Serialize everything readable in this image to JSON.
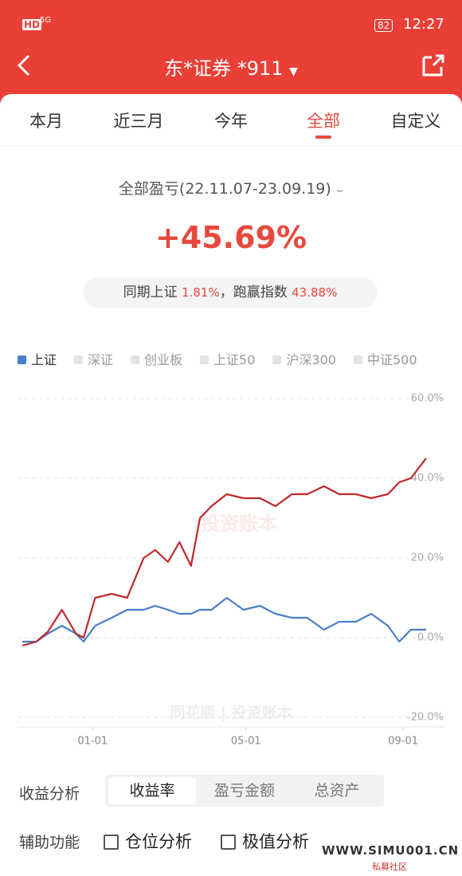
{
  "status_bar": {
    "network": "HD",
    "signal": "5G",
    "battery": "82",
    "time": "12:27"
  },
  "header": {
    "title": "东*证券 *911"
  },
  "tabs": {
    "items": [
      "本月",
      "近三月",
      "今年",
      "全部",
      "自定义"
    ],
    "active": 3
  },
  "summary": {
    "label": "全部盈亏(22.11.07-23.09.19)",
    "value": "+45.69%",
    "benchmark_label": "同期上证",
    "benchmark_value": "1.81%",
    "beat_label": "，跑赢指数",
    "beat_value": "43.88%"
  },
  "inactive_legend": [
    "深证",
    "创业板",
    "上证50",
    "沪深300",
    "中证500"
  ],
  "chart_data": {
    "type": "line",
    "x": [
      "11-07",
      "11-18",
      "11-27",
      "12-08",
      "12-19",
      "12-25",
      "01-03",
      "01-16",
      "01-28",
      "02-10",
      "02-19",
      "03-01",
      "03-10",
      "03-19",
      "03-26",
      "04-04",
      "04-16",
      "04-29",
      "05-12",
      "05-24",
      "06-06",
      "06-18",
      "07-01",
      "07-13",
      "07-26",
      "08-07",
      "08-20",
      "08-29",
      "09-07",
      "09-19"
    ],
    "series": [
      {
        "color": "#c0282b",
        "values": [
          -2,
          -1,
          1.5,
          7,
          1,
          0,
          10,
          11,
          10,
          20,
          22,
          19,
          24,
          18,
          30,
          33,
          36,
          35,
          35,
          33,
          36,
          36,
          38,
          36,
          36,
          35,
          36,
          39,
          40,
          45
        ]
      },
      {
        "name": "上证",
        "color": "#4a7fc8",
        "values": [
          -1,
          -1,
          1,
          3,
          1,
          -1,
          3,
          5,
          7,
          7,
          8,
          7,
          6,
          6,
          7,
          7,
          10,
          7,
          8,
          6,
          5,
          5,
          2,
          4,
          4,
          6,
          3,
          -1,
          2,
          2
        ]
      }
    ],
    "xlim": [
      "11-07",
      "09-19"
    ],
    "xticks": [
      "01-01",
      "05-01",
      "09-01"
    ],
    "ylim": [
      -20,
      60
    ],
    "yticks": [
      {
        "value": -20,
        "label": "-20.0%"
      },
      {
        "value": 0,
        "label": "0.0%"
      },
      {
        "value": 20,
        "label": "20.0%"
      },
      {
        "value": 40,
        "label": "40.0%"
      },
      {
        "value": 60,
        "label": "60.0%"
      }
    ],
    "grid": true,
    "watermarks": [
      "投资账本",
      "同花顺 | 投资账本"
    ]
  },
  "analysis": {
    "label": "收益分析",
    "options": [
      "收益率",
      "盈亏金额",
      "总资产"
    ],
    "active": 0
  },
  "tools": {
    "label": "辅助功能",
    "options": [
      "仓位分析",
      "极值分析"
    ]
  },
  "site_mark": {
    "name": "WWW.SIMU001.CN",
    "tagline": "私募社区"
  }
}
